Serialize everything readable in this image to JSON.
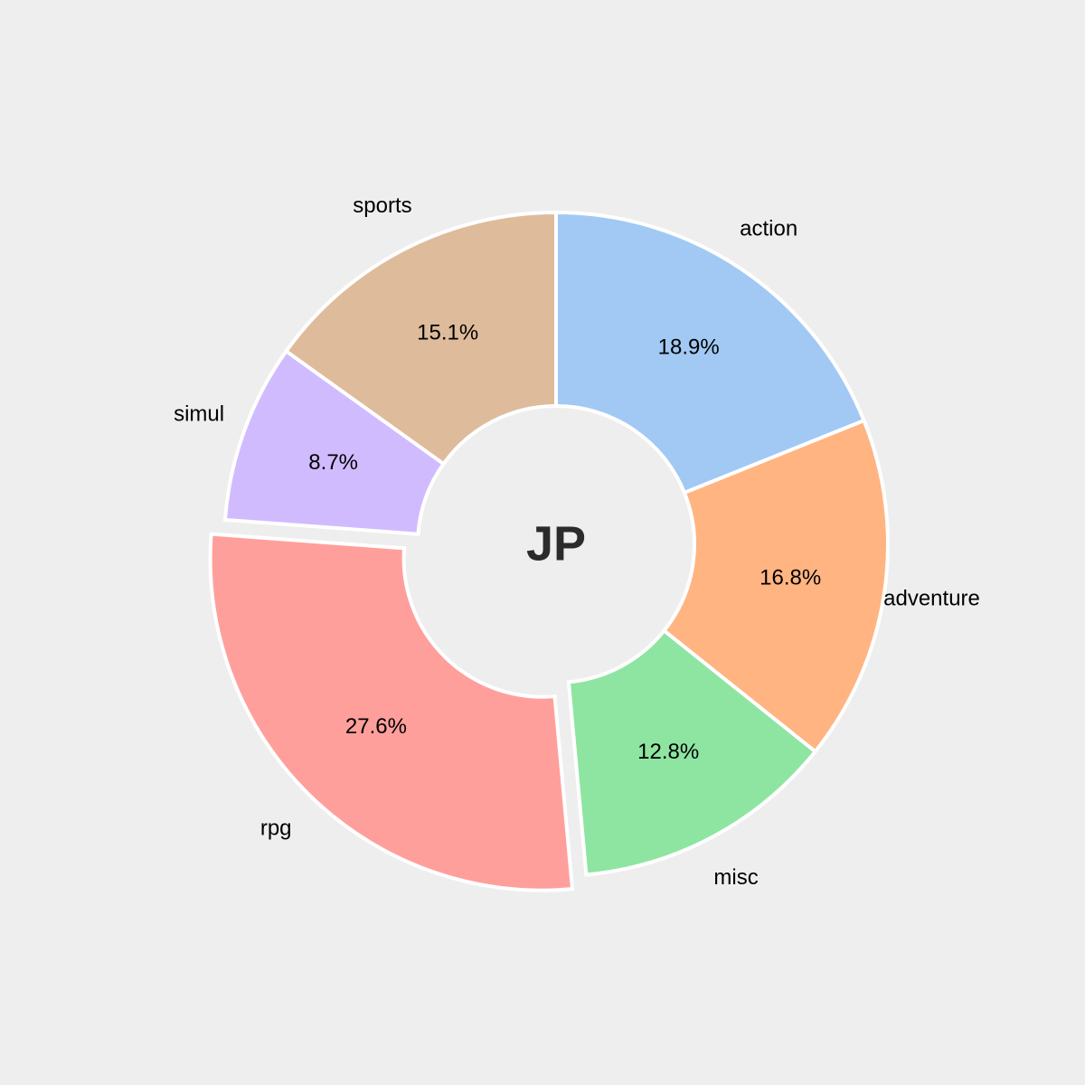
{
  "chart_data": {
    "type": "pie",
    "donut": true,
    "center_label": "JP",
    "start": "12 o'clock",
    "direction": "clockwise",
    "exploded": [
      "rpg"
    ],
    "slices": [
      {
        "name": "action",
        "value": 18.9,
        "pct_label": "18.9%",
        "color": "#a1c9f4"
      },
      {
        "name": "adventure",
        "value": 16.8,
        "pct_label": "16.8%",
        "color": "#ffb482"
      },
      {
        "name": "misc",
        "value": 12.8,
        "pct_label": "12.8%",
        "color": "#8de5a1"
      },
      {
        "name": "rpg",
        "value": 27.6,
        "pct_label": "27.6%",
        "color": "#ff9f9b"
      },
      {
        "name": "simul",
        "value": 8.7,
        "pct_label": "8.7%",
        "color": "#d0bbff"
      },
      {
        "name": "sports",
        "value": 15.1,
        "pct_label": "15.1%",
        "color": "#debb9b"
      }
    ]
  }
}
